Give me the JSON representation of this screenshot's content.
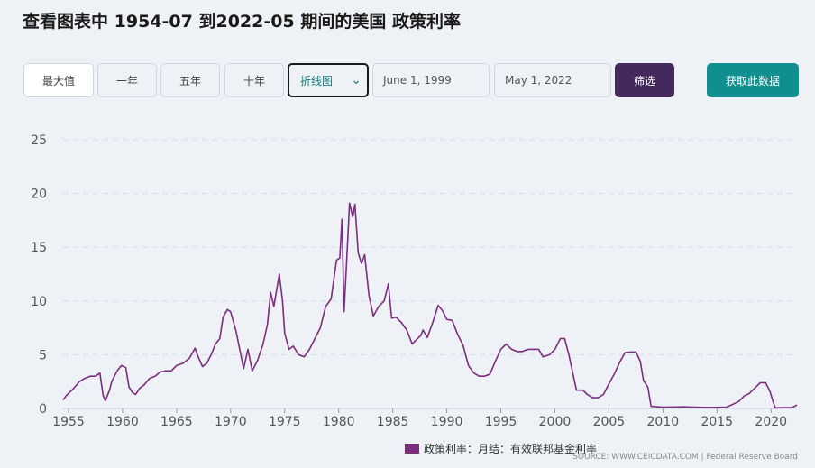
{
  "title": {
    "prefix": "查看图表中",
    "start": "1954-07",
    "mid": "到2022-05",
    "suffix": "期间的美国",
    "topic": "政策利率"
  },
  "controls": {
    "range_buttons": [
      "最大值",
      "一年",
      "五年",
      "十年"
    ],
    "chart_type_selected": "折线图",
    "start_date": "June 1, 1999",
    "end_date": "May 1, 2022",
    "filter_label": "筛选",
    "fetch_label": "获取此数据"
  },
  "legend_label": "政策利率：月结：有效联邦基金利率",
  "source_text": "SOURCE: WWW.CEICDATA.COM | Federal Reserve Board",
  "colors": {
    "line": "#7b2d80",
    "background": "#eef2f6",
    "filter_button": "#44295d",
    "fetch_button": "#0f8f8f"
  },
  "chart_data": {
    "type": "line",
    "x_ticks": [
      1955,
      1960,
      1965,
      1970,
      1975,
      1980,
      1985,
      1990,
      1995,
      2000,
      2005,
      2010,
      2015,
      2020
    ],
    "y_ticks": [
      0,
      5,
      10,
      15,
      20,
      25
    ],
    "xlim": [
      1954.5,
      2022.4
    ],
    "ylim": [
      0,
      25
    ],
    "grid": "horizontal dashed",
    "legend_position": "bottom",
    "series": [
      {
        "name": "政策利率：月结：有效联邦基金利率",
        "points": [
          [
            1954.5,
            0.8
          ],
          [
            1954.8,
            1.2
          ],
          [
            1955.0,
            1.4
          ],
          [
            1955.5,
            1.9
          ],
          [
            1956.0,
            2.5
          ],
          [
            1956.5,
            2.8
          ],
          [
            1957.0,
            3.0
          ],
          [
            1957.5,
            3.0
          ],
          [
            1957.9,
            3.3
          ],
          [
            1958.2,
            1.2
          ],
          [
            1958.4,
            0.7
          ],
          [
            1958.8,
            1.7
          ],
          [
            1959.0,
            2.5
          ],
          [
            1959.5,
            3.5
          ],
          [
            1959.9,
            4.0
          ],
          [
            1960.3,
            3.8
          ],
          [
            1960.6,
            2.0
          ],
          [
            1960.9,
            1.5
          ],
          [
            1961.2,
            1.3
          ],
          [
            1961.6,
            1.9
          ],
          [
            1962.0,
            2.2
          ],
          [
            1962.5,
            2.8
          ],
          [
            1963.0,
            3.0
          ],
          [
            1963.5,
            3.4
          ],
          [
            1964.0,
            3.5
          ],
          [
            1964.5,
            3.5
          ],
          [
            1965.0,
            4.0
          ],
          [
            1965.6,
            4.2
          ],
          [
            1966.2,
            4.7
          ],
          [
            1966.7,
            5.6
          ],
          [
            1967.0,
            4.8
          ],
          [
            1967.4,
            3.9
          ],
          [
            1967.8,
            4.2
          ],
          [
            1968.2,
            5.0
          ],
          [
            1968.6,
            6.0
          ],
          [
            1969.0,
            6.5
          ],
          [
            1969.3,
            8.5
          ],
          [
            1969.7,
            9.2
          ],
          [
            1970.0,
            9.0
          ],
          [
            1970.5,
            7.2
          ],
          [
            1970.9,
            5.2
          ],
          [
            1971.2,
            3.7
          ],
          [
            1971.6,
            5.5
          ],
          [
            1972.0,
            3.5
          ],
          [
            1972.5,
            4.5
          ],
          [
            1973.0,
            6.0
          ],
          [
            1973.4,
            7.8
          ],
          [
            1973.7,
            10.8
          ],
          [
            1974.0,
            9.5
          ],
          [
            1974.5,
            12.5
          ],
          [
            1974.8,
            10.0
          ],
          [
            1975.0,
            7.0
          ],
          [
            1975.4,
            5.5
          ],
          [
            1975.8,
            5.8
          ],
          [
            1976.3,
            5.0
          ],
          [
            1976.8,
            4.8
          ],
          [
            1977.3,
            5.5
          ],
          [
            1977.8,
            6.5
          ],
          [
            1978.3,
            7.5
          ],
          [
            1978.8,
            9.5
          ],
          [
            1979.3,
            10.2
          ],
          [
            1979.8,
            13.8
          ],
          [
            1980.1,
            14.0
          ],
          [
            1980.3,
            17.6
          ],
          [
            1980.5,
            9.0
          ],
          [
            1980.8,
            15.0
          ],
          [
            1981.0,
            19.1
          ],
          [
            1981.3,
            17.8
          ],
          [
            1981.5,
            19.0
          ],
          [
            1981.8,
            14.5
          ],
          [
            1982.1,
            13.5
          ],
          [
            1982.4,
            14.3
          ],
          [
            1982.8,
            10.5
          ],
          [
            1983.2,
            8.6
          ],
          [
            1983.7,
            9.5
          ],
          [
            1984.2,
            10.0
          ],
          [
            1984.6,
            11.6
          ],
          [
            1984.9,
            8.4
          ],
          [
            1985.3,
            8.5
          ],
          [
            1985.8,
            8.0
          ],
          [
            1986.3,
            7.3
          ],
          [
            1986.8,
            6.0
          ],
          [
            1987.2,
            6.4
          ],
          [
            1987.6,
            6.8
          ],
          [
            1987.8,
            7.3
          ],
          [
            1988.2,
            6.6
          ],
          [
            1988.7,
            8.0
          ],
          [
            1989.2,
            9.6
          ],
          [
            1989.6,
            9.1
          ],
          [
            1990.0,
            8.3
          ],
          [
            1990.5,
            8.2
          ],
          [
            1991.0,
            6.9
          ],
          [
            1991.5,
            5.9
          ],
          [
            1992.0,
            4.0
          ],
          [
            1992.5,
            3.3
          ],
          [
            1993.0,
            3.0
          ],
          [
            1993.5,
            3.0
          ],
          [
            1994.0,
            3.2
          ],
          [
            1994.5,
            4.4
          ],
          [
            1995.0,
            5.5
          ],
          [
            1995.5,
            6.0
          ],
          [
            1996.0,
            5.5
          ],
          [
            1996.5,
            5.3
          ],
          [
            1997.0,
            5.3
          ],
          [
            1997.5,
            5.5
          ],
          [
            1998.0,
            5.5
          ],
          [
            1998.5,
            5.5
          ],
          [
            1998.9,
            4.8
          ],
          [
            1999.5,
            5.0
          ],
          [
            2000.0,
            5.5
          ],
          [
            2000.5,
            6.5
          ],
          [
            2000.9,
            6.5
          ],
          [
            2001.3,
            5.0
          ],
          [
            2001.6,
            3.6
          ],
          [
            2002.0,
            1.7
          ],
          [
            2002.6,
            1.7
          ],
          [
            2003.0,
            1.3
          ],
          [
            2003.5,
            1.0
          ],
          [
            2004.0,
            1.0
          ],
          [
            2004.5,
            1.3
          ],
          [
            2005.0,
            2.3
          ],
          [
            2005.5,
            3.2
          ],
          [
            2006.0,
            4.3
          ],
          [
            2006.5,
            5.2
          ],
          [
            2007.0,
            5.25
          ],
          [
            2007.5,
            5.25
          ],
          [
            2007.9,
            4.4
          ],
          [
            2008.2,
            2.6
          ],
          [
            2008.6,
            2.0
          ],
          [
            2008.9,
            0.2
          ],
          [
            2009.5,
            0.15
          ],
          [
            2010.0,
            0.12
          ],
          [
            2012.0,
            0.15
          ],
          [
            2014.0,
            0.09
          ],
          [
            2015.9,
            0.13
          ],
          [
            2016.5,
            0.4
          ],
          [
            2017.0,
            0.65
          ],
          [
            2017.5,
            1.15
          ],
          [
            2018.0,
            1.4
          ],
          [
            2018.5,
            1.9
          ],
          [
            2019.0,
            2.4
          ],
          [
            2019.5,
            2.4
          ],
          [
            2019.9,
            1.6
          ],
          [
            2020.2,
            0.6
          ],
          [
            2020.4,
            0.05
          ],
          [
            2021.0,
            0.08
          ],
          [
            2021.9,
            0.08
          ],
          [
            2022.2,
            0.2
          ],
          [
            2022.4,
            0.33
          ]
        ]
      }
    ]
  }
}
